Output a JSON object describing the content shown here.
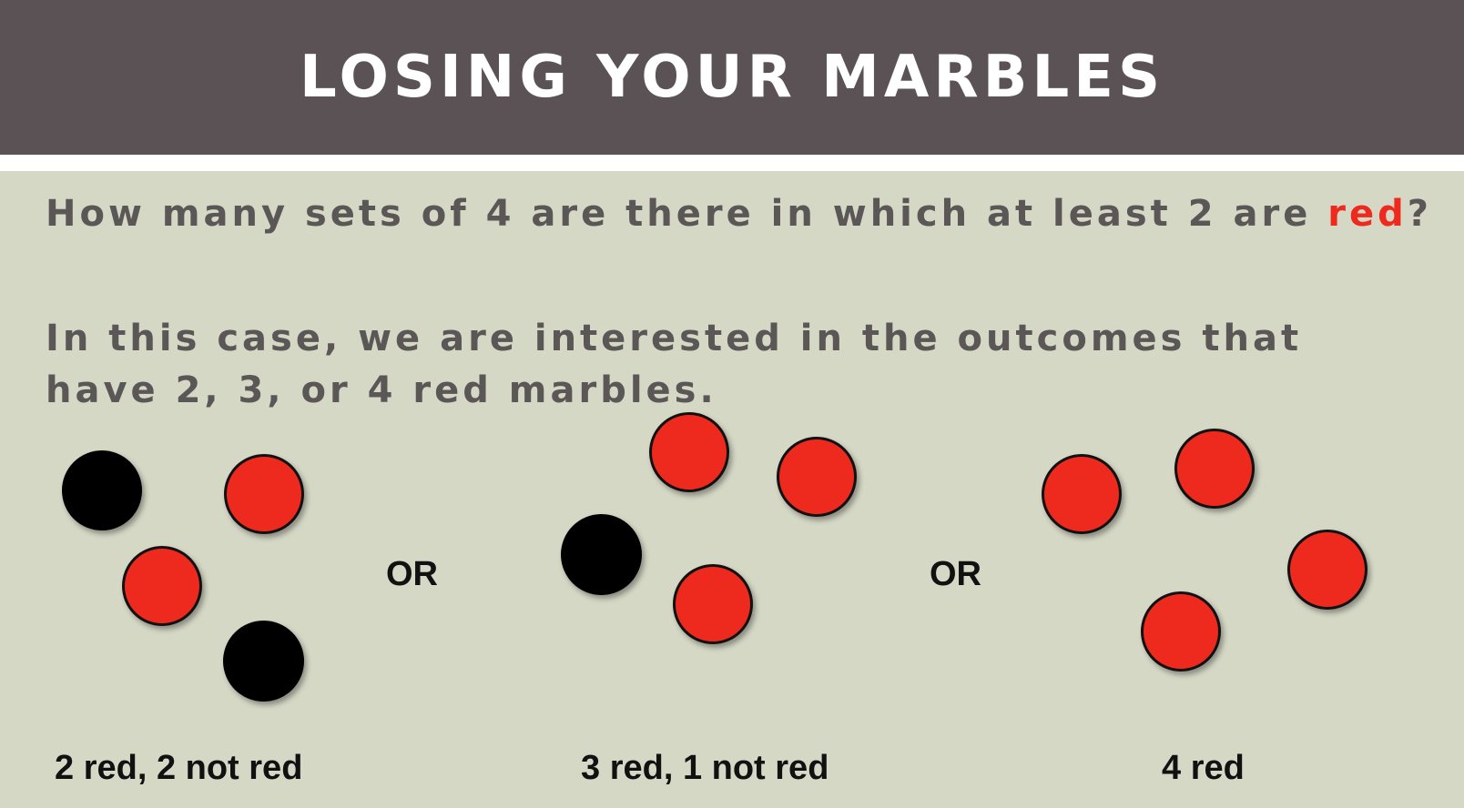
{
  "slide": {
    "title": "LOSING YOUR MARBLES",
    "question_pre": "How many sets of 4 are there in which at least 2 are ",
    "question_red": "red",
    "question_post": "?",
    "explanation": "In this case, we are interested in the outcomes that have 2, 3, or 4 red marbles."
  },
  "colors": {
    "title_bar": "#5a5255",
    "background": "#d6d8c6",
    "body_text": "#5c5757",
    "red_marble": "#ee2a1e",
    "black_marble": "#000000"
  },
  "groups": [
    {
      "caption": "2 red, 2 not red",
      "red_count": 2,
      "not_red_count": 2
    },
    {
      "caption": "3 red, 1 not red",
      "red_count": 3,
      "not_red_count": 1
    },
    {
      "caption": "4 red",
      "red_count": 4,
      "not_red_count": 0
    }
  ],
  "separators": [
    "OR",
    "OR"
  ]
}
